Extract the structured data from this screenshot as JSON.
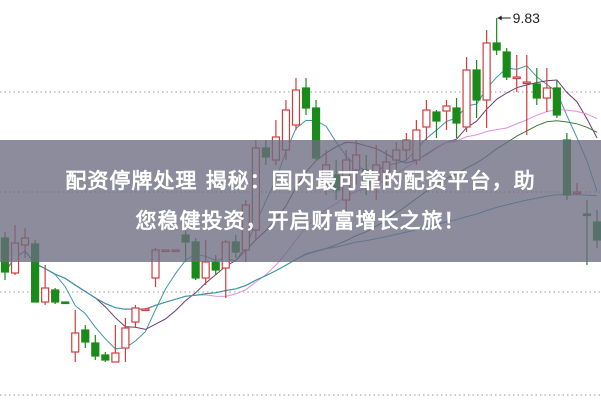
{
  "banner": {
    "line1": "配资停牌处理 揭秘：国内最可靠的配资平台，助",
    "line2": "您稳健投资，开启财富增长之旅！"
  },
  "chart_data": {
    "type": "candlestick",
    "ylim": [
      6.0,
      10.01
    ],
    "grid": "horizontal dotted",
    "gridlines": [
      9.09,
      8.09,
      7.09,
      6.06
    ],
    "high_annotation": "9.83",
    "colors": {
      "up": "#d23c3c",
      "down": "#1a8a1a",
      "ma5": "#3f95a8",
      "ma10": "#6b3b6b",
      "ma20": "#e08ee0",
      "ma30": "#3c7a3c",
      "ma60": "#3a9ab5",
      "grid": "#999999"
    },
    "moving_averages": [
      5,
      10,
      20,
      30,
      60
    ],
    "candles_ochl": [
      [
        7.63,
        7.29,
        7.69,
        7.21
      ],
      [
        7.28,
        7.58,
        7.76,
        7.26
      ],
      [
        7.56,
        7.63,
        7.73,
        7.43
      ],
      [
        7.57,
        6.99,
        7.61,
        6.99
      ],
      [
        6.99,
        7.13,
        7.36,
        6.96
      ],
      [
        7.11,
        6.99,
        7.13,
        6.97
      ],
      [
        6.99,
        6.98,
        6.99,
        6.98
      ],
      [
        6.49,
        6.68,
        6.91,
        6.39
      ],
      [
        6.71,
        6.59,
        6.76,
        6.53
      ],
      [
        6.58,
        6.45,
        6.66,
        6.41
      ],
      [
        6.46,
        6.41,
        6.49,
        6.39
      ],
      [
        6.39,
        6.48,
        6.76,
        6.39
      ],
      [
        6.53,
        6.73,
        6.83,
        6.39
      ],
      [
        6.79,
        6.93,
        6.96,
        6.74
      ],
      [
        6.91,
        6.92,
        6.93,
        6.9
      ],
      [
        7.23,
        7.51,
        7.53,
        7.14
      ],
      [
        7.51,
        7.51,
        7.51,
        7.51
      ],
      [
        7.51,
        7.51,
        7.51,
        7.51
      ],
      [
        7.66,
        7.59,
        7.71,
        7.39
      ],
      [
        7.59,
        7.23,
        7.63,
        7.21
      ],
      [
        7.23,
        7.39,
        7.61,
        7.16
      ],
      [
        7.39,
        7.31,
        7.46,
        7.26
      ],
      [
        7.33,
        7.59,
        7.61,
        7.03
      ],
      [
        7.59,
        7.49,
        7.66,
        7.43
      ],
      [
        7.51,
        7.96,
        8.01,
        7.39
      ],
      [
        7.71,
        8.53,
        8.61,
        7.61
      ],
      [
        8.53,
        8.44,
        8.61,
        8.36
      ],
      [
        8.41,
        8.64,
        8.81,
        8.36
      ],
      [
        8.51,
        8.91,
        9.01,
        8.41
      ],
      [
        8.76,
        9.11,
        9.23,
        8.71
      ],
      [
        9.13,
        8.93,
        9.23,
        8.86
      ],
      [
        8.93,
        8.43,
        9.01,
        8.41
      ],
      [
        8.16,
        8.36,
        8.51,
        8.06
      ],
      [
        8.26,
        8.11,
        8.41,
        8.01
      ],
      [
        8.01,
        8.41,
        8.51,
        7.86
      ],
      [
        8.31,
        8.46,
        8.61,
        8.16
      ],
      [
        8.31,
        8.16,
        8.46,
        8.06
      ],
      [
        8.21,
        8.36,
        8.56,
        8.01
      ],
      [
        8.29,
        8.39,
        8.51,
        8.16
      ],
      [
        8.41,
        8.51,
        8.59,
        8.31
      ],
      [
        8.51,
        8.61,
        8.68,
        8.41
      ],
      [
        8.41,
        8.71,
        8.81,
        8.36
      ],
      [
        8.74,
        8.91,
        9.01,
        8.61
      ],
      [
        8.89,
        8.8,
        8.91,
        8.63
      ],
      [
        8.9,
        8.95,
        9.01,
        8.71
      ],
      [
        8.93,
        8.78,
        9.03,
        8.63
      ],
      [
        8.74,
        9.31,
        9.44,
        8.69
      ],
      [
        9.31,
        9.01,
        9.41,
        8.83
      ],
      [
        9.01,
        9.58,
        9.71,
        8.73
      ],
      [
        9.58,
        9.51,
        9.83,
        9.46
      ],
      [
        9.49,
        9.24,
        9.53,
        9.21
      ],
      [
        9.23,
        9.24,
        9.46,
        9.09
      ],
      [
        9.18,
        9.19,
        9.46,
        8.66
      ],
      [
        9.17,
        9.03,
        9.33,
        8.96
      ],
      [
        9.03,
        9.13,
        9.33,
        8.89
      ],
      [
        9.13,
        8.86,
        9.21,
        8.83
      ],
      [
        8.61,
        8.06,
        8.68,
        8.01
      ],
      [
        8.08,
        8.09,
        8.18,
        8.06
      ],
      [
        7.87,
        7.86,
        8.01,
        7.36
      ],
      [
        7.79,
        7.61,
        7.91,
        7.53
      ]
    ]
  }
}
